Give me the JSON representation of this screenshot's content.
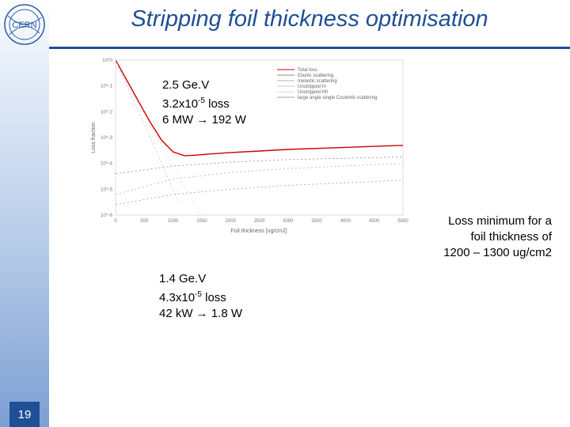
{
  "slide": {
    "title": "Stripping foil thickness optimisation",
    "page_number": "19",
    "logo_text": "CERN"
  },
  "annotation_high": {
    "energy": "2.5 Ge.V",
    "loss_base": "3.2x10",
    "loss_exp": "-5",
    "loss_suffix": " loss",
    "power": "6 MW → 192 W"
  },
  "annotation_low": {
    "energy": "1.4 Ge.V",
    "loss_base": "4.3x10",
    "loss_exp": "-5",
    "loss_suffix": " loss",
    "power": "42 kW → 1.8 W"
  },
  "conclusion": {
    "line1": "Loss minimum for a",
    "line2": "foil thickness of",
    "line3": "1200 – 1300 ug/cm2"
  },
  "chart_data": {
    "type": "line",
    "xlabel": "Foil thickness [ug/cm2]",
    "ylabel": "Loss fraction",
    "xlim": [
      0,
      5000
    ],
    "ylim_log10": [
      -6,
      0
    ],
    "x_ticks": [
      "0",
      "500",
      "1000",
      "1500",
      "2000",
      "2500",
      "3000",
      "3500",
      "4000",
      "4500",
      "5000"
    ],
    "y_ticks": [
      "10^0",
      "10^-1",
      "10^-2",
      "10^-3",
      "10^-4",
      "10^-5",
      "10^-6"
    ],
    "legend_position": "top-right",
    "series": [
      {
        "name": "Total loss",
        "color": "#cc0000",
        "x": [
          0,
          200,
          400,
          600,
          800,
          1000,
          1200,
          1400,
          1600,
          2000,
          2500,
          3000,
          3500,
          4000,
          4500,
          5000
        ],
        "log10_y": [
          0,
          -0.8,
          -1.6,
          -2.4,
          -3.1,
          -3.55,
          -3.7,
          -3.68,
          -3.64,
          -3.58,
          -3.52,
          -3.46,
          -3.42,
          -3.38,
          -3.34,
          -3.3
        ]
      },
      {
        "name": "Elastic scattering",
        "color": "#8a8a8a",
        "x": [
          0,
          1000,
          2000,
          3000,
          4000,
          5000
        ],
        "log10_y": [
          -4.4,
          -4.1,
          -3.95,
          -3.85,
          -3.8,
          -3.75
        ]
      },
      {
        "name": "Inelastic scattering",
        "color": "#b0b0b0",
        "x": [
          0,
          1000,
          2000,
          3000,
          4000,
          5000
        ],
        "log10_y": [
          -5.2,
          -4.6,
          -4.35,
          -4.2,
          -4.1,
          -4.0
        ]
      },
      {
        "name": "Unstripped H-",
        "color": "#c8c8c8",
        "x": [
          0,
          200,
          400,
          600,
          800,
          1000,
          1100
        ],
        "log10_y": [
          0,
          -1.0,
          -2.0,
          -3.0,
          -4.0,
          -5.0,
          -5.5
        ]
      },
      {
        "name": "Unstripped H0",
        "color": "#d8d8d8",
        "x": [
          0,
          300,
          600,
          900,
          1200,
          1500
        ],
        "log10_y": [
          -0.3,
          -1.3,
          -2.5,
          -3.7,
          -4.9,
          -6.0
        ]
      },
      {
        "name": "large angle single Coulomb scattering",
        "color": "#a0a0a0",
        "x": [
          0,
          1000,
          2000,
          3000,
          4000,
          5000
        ],
        "log10_y": [
          -5.6,
          -5.2,
          -5.0,
          -4.85,
          -4.75,
          -4.65
        ]
      }
    ]
  }
}
